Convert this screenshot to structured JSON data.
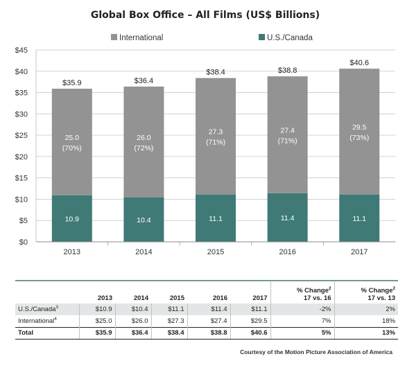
{
  "chart_data": {
    "type": "bar",
    "stacked": true,
    "title": "Global Box Office – All Films (US$ Billions)",
    "categories": [
      "2013",
      "2014",
      "2015",
      "2016",
      "2017"
    ],
    "ylim": [
      0,
      45
    ],
    "yticks": [
      "$0",
      "$5",
      "$10",
      "$15",
      "$20",
      "$25",
      "$30",
      "$35",
      "$40",
      "$45"
    ],
    "ytick_values": [
      0,
      5,
      10,
      15,
      20,
      25,
      30,
      35,
      40,
      45
    ],
    "grid": true,
    "legend_position": "top",
    "series": [
      {
        "name": "U.S./Canada",
        "color": "#3f7a76",
        "values": [
          10.9,
          10.4,
          11.1,
          11.4,
          11.1
        ],
        "labels": [
          "10.9",
          "10.4",
          "11.1",
          "11.4",
          "11.1"
        ]
      },
      {
        "name": "International",
        "color": "#939393",
        "values": [
          25.0,
          26.0,
          27.3,
          27.4,
          29.5
        ],
        "labels": [
          "25.0",
          "26.0",
          "27.3",
          "27.4",
          "29.5"
        ],
        "share_labels": [
          "(70%)",
          "(72%)",
          "(71%)",
          "(71%)",
          "(73%)"
        ]
      }
    ],
    "totals": [
      "$35.9",
      "$36.4",
      "$38.4",
      "$38.8",
      "$40.6"
    ]
  },
  "table": {
    "headers": {
      "years": [
        "2013",
        "2014",
        "2015",
        "2016",
        "2017"
      ],
      "change1_line1": "% Change",
      "change1_sup": "2",
      "change1_line2": "17 vs. 16",
      "change2_line1": "% Change",
      "change2_sup": "2",
      "change2_line2": "17 vs. 13"
    },
    "rows": {
      "us": {
        "label": "U.S./Canada",
        "sup": "3",
        "values": [
          "$10.9",
          "$10.4",
          "$11.1",
          "$11.4",
          "$11.1"
        ],
        "chg1": "-2%",
        "chg2": "2%"
      },
      "intl": {
        "label": "International",
        "sup": "4",
        "values": [
          "$25.0",
          "$26.0",
          "$27.3",
          "$27.4",
          "$29.5"
        ],
        "chg1": "7%",
        "chg2": "18%"
      },
      "total": {
        "label": "Total",
        "values": [
          "$35.9",
          "$36.4",
          "$38.4",
          "$38.8",
          "$40.6"
        ],
        "chg1": "5%",
        "chg2": "13%"
      }
    }
  },
  "courtesy": "Courtesy of the Motion Picture Association of America"
}
